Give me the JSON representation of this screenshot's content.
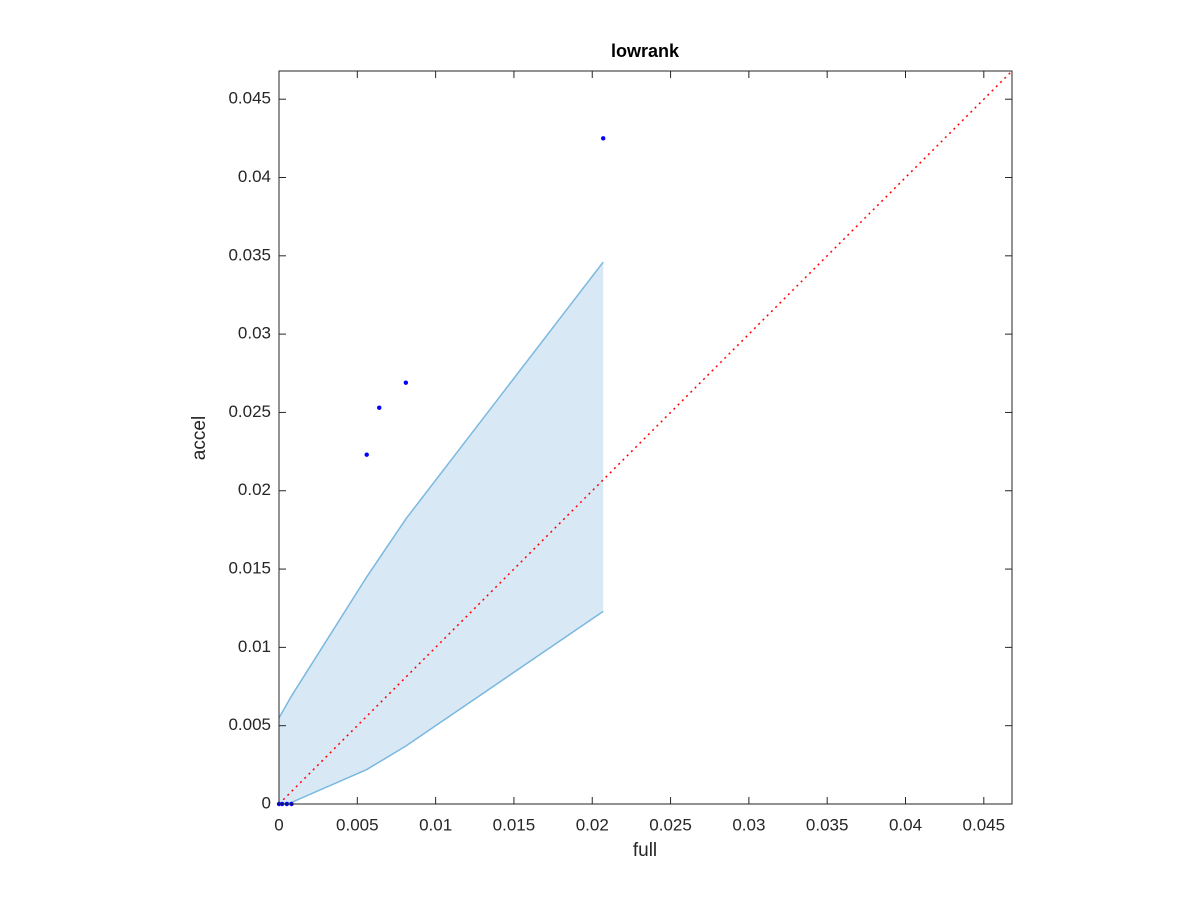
{
  "chart_data": {
    "type": "scatter",
    "title": "lowrank",
    "x_label": "full",
    "y_label": "accel",
    "xlim": [
      0,
      0.0468
    ],
    "ylim": [
      0,
      0.0468
    ],
    "xticks": [
      0,
      0.005,
      0.01,
      0.015,
      0.02,
      0.025,
      0.03,
      0.035,
      0.04,
      0.045
    ],
    "yticks": [
      0,
      0.005,
      0.01,
      0.015,
      0.02,
      0.025,
      0.03,
      0.035,
      0.04,
      0.045
    ],
    "band": {
      "color": "#7ab8e0",
      "fill": "#d9e8f5",
      "x": [
        0,
        0.0008,
        0.0056,
        0.0081,
        0.0207
      ],
      "upper": [
        0.0055,
        0.0069,
        0.0145,
        0.0182,
        0.0346
      ],
      "lower": [
        0,
        0.0001,
        0.0022,
        0.0037,
        0.0123
      ]
    },
    "reference": {
      "color": "#ff0000",
      "x": [
        0,
        0.0468
      ],
      "values": [
        0,
        0.0468
      ]
    },
    "points": {
      "color": "#0000ff",
      "x": [
        0,
        0.0002,
        0.0005,
        0.0008,
        0.0056,
        0.0064,
        0.0081,
        0.0207
      ],
      "values": [
        0,
        0,
        0,
        0,
        0.0223,
        0.0253,
        0.0269,
        0.0425
      ]
    }
  }
}
